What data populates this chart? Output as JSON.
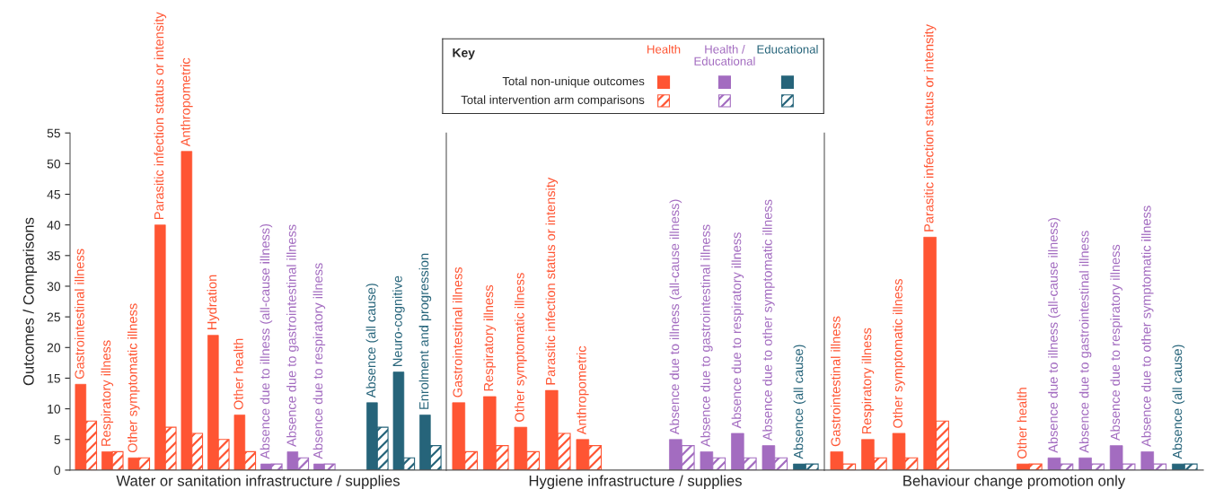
{
  "chart_data": [
    {
      "type": "bar",
      "xlabel": "Water or sanitation infrastructure / supplies",
      "ylabel": "Outcomes / Comparisons",
      "ylim": [
        0,
        55
      ],
      "yticks": [
        0,
        5,
        10,
        15,
        20,
        25,
        30,
        35,
        40,
        45,
        50,
        55
      ],
      "legend": "top",
      "legend_title": "Key",
      "annotations": [
        "Health",
        "Health / Educational",
        "Educational"
      ],
      "categories": [
        "Gastrointestinal illness",
        "Respiratory illness",
        "Other symptomatic illness",
        "Parasitic infection status or intensity",
        "Anthropometric",
        "Hydration",
        "Other health",
        "Absence due to illness (all-cause illness)",
        "Absence due to gastrointestinal illness",
        "Absence due to respiratory illness",
        null,
        "Absence (all cause)",
        "Neuro-cognitive",
        "Enrolment and progression"
      ],
      "series": [
        {
          "name": "Total non-unique outcomes",
          "values": [
            14,
            3,
            2,
            40,
            52,
            22,
            9,
            1,
            3,
            1,
            null,
            11,
            16,
            9
          ],
          "colors": [
            "#ff5533",
            "#ff5533",
            "#ff5533",
            "#ff5533",
            "#ff5533",
            "#ff5533",
            "#ff5533",
            "#a36cc0",
            "#a36cc0",
            "#a36cc0",
            null,
            "#26647a",
            "#26647a",
            "#26647a"
          ]
        },
        {
          "name": "Total intervention arm comparisons",
          "values": [
            8,
            3,
            2,
            7,
            6,
            5,
            3,
            1,
            2,
            1,
            null,
            7,
            2,
            4
          ],
          "colors": [
            "#ff5533",
            "#ff5533",
            "#ff5533",
            "#ff5533",
            "#ff5533",
            "#ff5533",
            "#ff5533",
            "#a36cc0",
            "#a36cc0",
            "#a36cc0",
            null,
            "#26647a",
            "#26647a",
            "#26647a"
          ]
        }
      ]
    },
    {
      "type": "bar",
      "xlabel": "Hygiene infrastructure / supplies",
      "ylim": [
        0,
        55
      ],
      "yticks": [
        0,
        5,
        10,
        15,
        20,
        25,
        30,
        35,
        40,
        45,
        50,
        55
      ],
      "tick_labels": "x",
      "categories": [
        "Gastrointestinal illness",
        "Respiratory illness",
        "Other symptomatic illness",
        "Parasitic infection status or intensity",
        "Anthropometric",
        null,
        null,
        "Absence due to illness (all-cause illness)",
        "Absence due to gastrointestinal illness",
        "Absence due to respiratory illness",
        "Absence due to other symptomatic illness",
        "Absence (all cause)"
      ],
      "series": [
        {
          "values": [
            11,
            12,
            7,
            13,
            5,
            null,
            null,
            5,
            3,
            6,
            4,
            1
          ],
          "colors": [
            "#ff5533",
            "#ff5533",
            "#ff5533",
            "#ff5533",
            "#ff5533",
            null,
            null,
            "#a36cc0",
            "#a36cc0",
            "#a36cc0",
            "#a36cc0",
            "#26647a"
          ]
        },
        {
          "values": [
            3,
            4,
            3,
            6,
            4,
            null,
            null,
            4,
            2,
            2,
            2,
            1
          ],
          "colors": [
            "#ff5533",
            "#ff5533",
            "#ff5533",
            "#ff5533",
            "#ff5533",
            null,
            null,
            "#a36cc0",
            "#a36cc0",
            "#a36cc0",
            "#a36cc0",
            "#26647a"
          ]
        }
      ]
    },
    {
      "type": "bar",
      "xlabel": "Behaviour change promotion only",
      "ylim": [
        0,
        55
      ],
      "yticks": [
        0,
        5,
        10,
        15,
        20,
        25,
        30,
        35,
        40,
        45,
        50,
        55
      ],
      "tick_labels": "x",
      "categories": [
        "Gastrointestinal illness",
        "Respiratory illness",
        "Other symptomatic illness",
        "Parasitic infection status or intensity",
        null,
        null,
        "Other health",
        "Absence due to illness (all-cause illness)",
        "Absence due to gastrointestinal illness",
        "Absence due to respiratory illness",
        "Absence due to other symptomatic illness",
        "Absence (all cause)"
      ],
      "series": [
        {
          "values": [
            3,
            5,
            6,
            38,
            null,
            null,
            1,
            2,
            2,
            4,
            3,
            1
          ],
          "colors": [
            "#ff5533",
            "#ff5533",
            "#ff5533",
            "#ff5533",
            null,
            null,
            "#ff5533",
            "#a36cc0",
            "#a36cc0",
            "#a36cc0",
            "#a36cc0",
            "#26647a"
          ]
        },
        {
          "values": [
            1,
            2,
            2,
            8,
            null,
            null,
            1,
            1,
            1,
            1,
            1,
            1
          ],
          "colors": [
            "#ff5533",
            "#ff5533",
            "#ff5533",
            "#ff5533",
            null,
            null,
            "#ff5533",
            "#a36cc0",
            "#a36cc0",
            "#a36cc0",
            "#a36cc0",
            "#26647a"
          ]
        }
      ]
    }
  ]
}
